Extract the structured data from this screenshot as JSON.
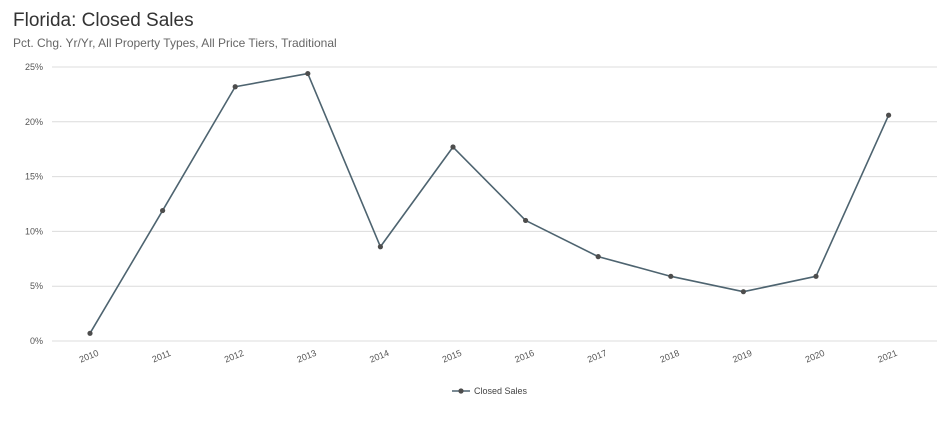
{
  "chart_data": {
    "type": "line",
    "title": "Florida: Closed Sales",
    "subtitle": "Pct. Chg. Yr/Yr, All Property Types, All Price Tiers, Traditional",
    "xlabel": "",
    "ylabel": "",
    "categories": [
      "2010",
      "2011",
      "2012",
      "2013",
      "2014",
      "2015",
      "2016",
      "2017",
      "2018",
      "2019",
      "2020",
      "2021"
    ],
    "series": [
      {
        "name": "Closed Sales",
        "values": [
          0.7,
          11.9,
          23.2,
          24.4,
          8.6,
          17.7,
          11.0,
          7.7,
          5.9,
          4.5,
          5.9,
          20.6
        ]
      }
    ],
    "yticks": [
      "0%",
      "5%",
      "10%",
      "15%",
      "20%",
      "25%"
    ],
    "ylim": [
      0,
      25
    ],
    "grid": true,
    "legend": "bottom-center",
    "colors": {
      "line": "#4e6470",
      "marker": "#4d4d4d",
      "grid": "#dcdcdc"
    }
  }
}
